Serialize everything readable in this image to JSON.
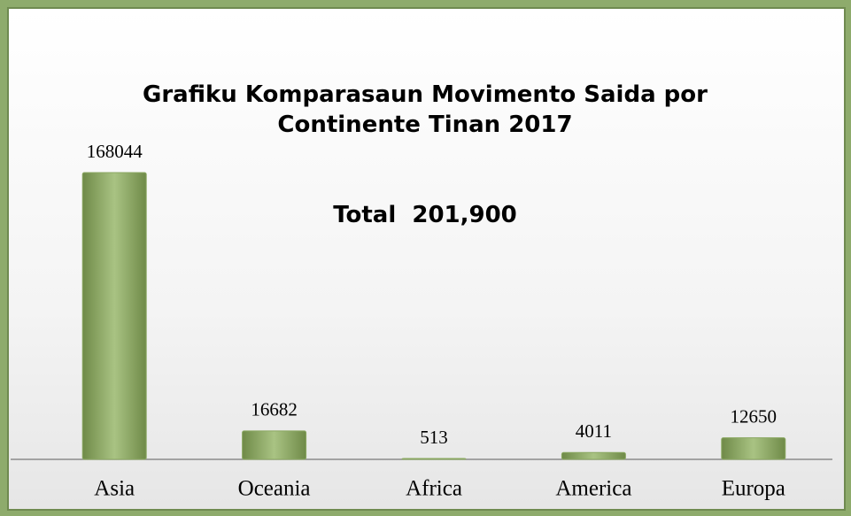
{
  "chart_data": {
    "type": "bar",
    "title": "Grafiku Komparasaun Movimento Saida por Continente Tinan 2017",
    "subtitle": "Total  201,900",
    "categories": [
      "Asia",
      "Oceania",
      "Africa",
      "America",
      "Europa"
    ],
    "values": [
      168044,
      16682,
      513,
      4011,
      12650
    ],
    "color": "#8ba862"
  }
}
